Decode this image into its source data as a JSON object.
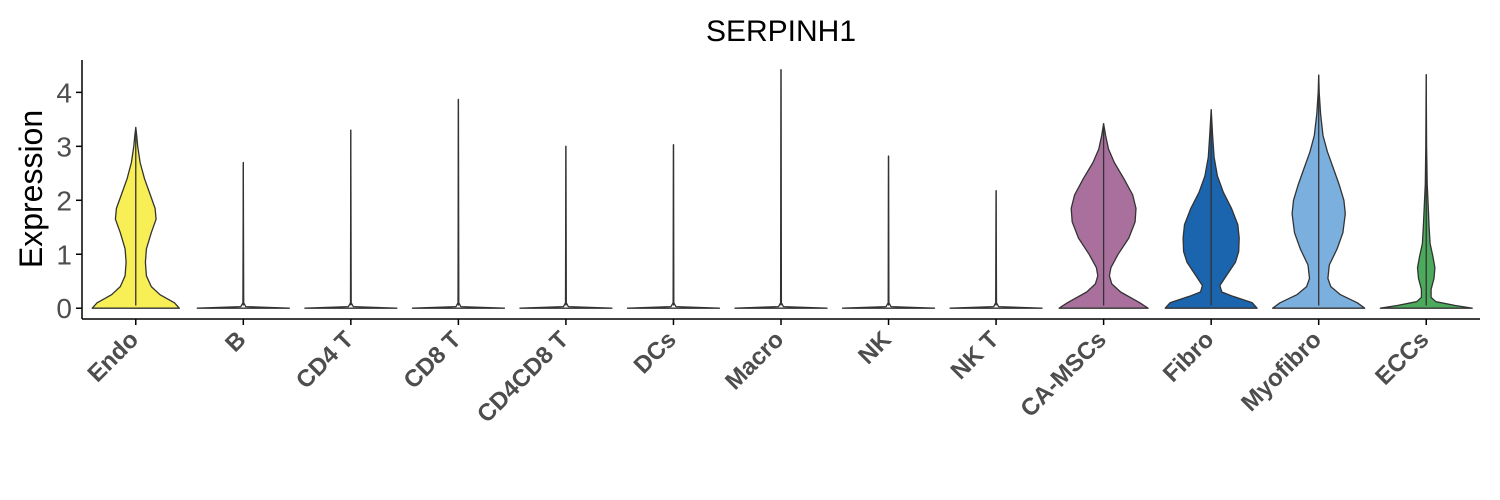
{
  "chart_data": {
    "type": "violin",
    "title": "SERPINH1",
    "ylabel": "Expression",
    "xlabel": "",
    "ylim": [
      -0.2,
      4.6
    ],
    "yticks": [
      0,
      1,
      2,
      3,
      4
    ],
    "grid": false,
    "legend": "none",
    "categories": [
      "Endo",
      "B",
      "CD4 T",
      "CD8 T",
      "CD4CD8 T",
      "DCs",
      "Macro",
      "NK",
      "NK T",
      "CA-MSCs",
      "Fibro",
      "Myofibro",
      "ECCs"
    ],
    "colors": [
      "#F7EF55",
      "#FFFFFF",
      "#FFFFFF",
      "#FFFFFF",
      "#FFFFFF",
      "#FFFFFF",
      "#FFFFFF",
      "#FFFFFF",
      "#FFFFFF",
      "#A9709E",
      "#1B65AE",
      "#7BAFDE",
      "#4BAA5C"
    ],
    "max_values": [
      3.35,
      2.7,
      3.3,
      3.87,
      3.0,
      3.03,
      4.42,
      2.82,
      2.18,
      3.42,
      3.68,
      4.32,
      4.33
    ],
    "density_profiles": [
      [
        [
          0,
          0.9
        ],
        [
          0.1,
          0.8
        ],
        [
          0.25,
          0.5
        ],
        [
          0.4,
          0.32
        ],
        [
          0.6,
          0.22
        ],
        [
          0.85,
          0.2
        ],
        [
          1.1,
          0.22
        ],
        [
          1.4,
          0.32
        ],
        [
          1.65,
          0.42
        ],
        [
          1.85,
          0.4
        ],
        [
          2.1,
          0.3
        ],
        [
          2.4,
          0.18
        ],
        [
          2.7,
          0.09
        ],
        [
          3.0,
          0.04
        ],
        [
          3.2,
          0.02
        ],
        [
          3.35,
          0
        ]
      ],
      [
        [
          0,
          0.95
        ],
        [
          0.03,
          0.05
        ],
        [
          0.1,
          0.008
        ],
        [
          2.7,
          0
        ]
      ],
      [
        [
          0,
          0.95
        ],
        [
          0.03,
          0.05
        ],
        [
          0.1,
          0.008
        ],
        [
          3.3,
          0
        ]
      ],
      [
        [
          0,
          0.95
        ],
        [
          0.03,
          0.05
        ],
        [
          0.1,
          0.008
        ],
        [
          3.87,
          0
        ]
      ],
      [
        [
          0,
          0.95
        ],
        [
          0.03,
          0.05
        ],
        [
          0.1,
          0.008
        ],
        [
          3.0,
          0
        ]
      ],
      [
        [
          0,
          0.95
        ],
        [
          0.03,
          0.05
        ],
        [
          0.1,
          0.008
        ],
        [
          3.03,
          0
        ]
      ],
      [
        [
          0,
          0.95
        ],
        [
          0.03,
          0.05
        ],
        [
          0.1,
          0.008
        ],
        [
          4.42,
          0
        ]
      ],
      [
        [
          0,
          0.95
        ],
        [
          0.03,
          0.05
        ],
        [
          0.1,
          0.008
        ],
        [
          2.82,
          0
        ]
      ],
      [
        [
          0,
          0.95
        ],
        [
          0.03,
          0.05
        ],
        [
          0.1,
          0.008
        ],
        [
          2.18,
          0
        ]
      ],
      [
        [
          0,
          0.92
        ],
        [
          0.1,
          0.75
        ],
        [
          0.3,
          0.35
        ],
        [
          0.45,
          0.17
        ],
        [
          0.6,
          0.12
        ],
        [
          0.75,
          0.15
        ],
        [
          1.0,
          0.3
        ],
        [
          1.3,
          0.52
        ],
        [
          1.6,
          0.65
        ],
        [
          1.85,
          0.67
        ],
        [
          2.1,
          0.6
        ],
        [
          2.4,
          0.42
        ],
        [
          2.7,
          0.22
        ],
        [
          2.95,
          0.1
        ],
        [
          3.2,
          0.04
        ],
        [
          3.42,
          0
        ]
      ],
      [
        [
          0,
          0.95
        ],
        [
          0.1,
          0.85
        ],
        [
          0.22,
          0.45
        ],
        [
          0.3,
          0.22
        ],
        [
          0.42,
          0.18
        ],
        [
          0.65,
          0.35
        ],
        [
          0.85,
          0.5
        ],
        [
          1.05,
          0.57
        ],
        [
          1.3,
          0.58
        ],
        [
          1.55,
          0.55
        ],
        [
          1.85,
          0.42
        ],
        [
          2.15,
          0.25
        ],
        [
          2.45,
          0.13
        ],
        [
          2.8,
          0.06
        ],
        [
          3.2,
          0.03
        ],
        [
          3.68,
          0
        ]
      ],
      [
        [
          0,
          0.95
        ],
        [
          0.1,
          0.8
        ],
        [
          0.25,
          0.45
        ],
        [
          0.4,
          0.25
        ],
        [
          0.55,
          0.19
        ],
        [
          0.8,
          0.22
        ],
        [
          1.1,
          0.38
        ],
        [
          1.4,
          0.5
        ],
        [
          1.75,
          0.55
        ],
        [
          2.0,
          0.52
        ],
        [
          2.3,
          0.42
        ],
        [
          2.6,
          0.3
        ],
        [
          2.9,
          0.18
        ],
        [
          3.2,
          0.09
        ],
        [
          3.6,
          0.04
        ],
        [
          4.0,
          0.01
        ],
        [
          4.32,
          0
        ]
      ],
      [
        [
          0,
          0.95
        ],
        [
          0.05,
          0.6
        ],
        [
          0.12,
          0.2
        ],
        [
          0.2,
          0.1
        ],
        [
          0.35,
          0.1
        ],
        [
          0.55,
          0.16
        ],
        [
          0.75,
          0.18
        ],
        [
          0.95,
          0.14
        ],
        [
          1.2,
          0.08
        ],
        [
          1.5,
          0.06
        ],
        [
          1.9,
          0.04
        ],
        [
          2.3,
          0.02
        ],
        [
          3.0,
          0.008
        ],
        [
          4.33,
          0
        ]
      ]
    ]
  }
}
